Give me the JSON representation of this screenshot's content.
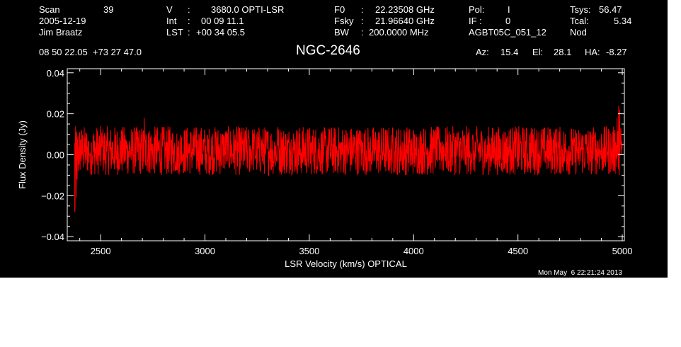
{
  "header": {
    "scan_label": "Scan",
    "scan_value": "39",
    "date": "2005-12-19",
    "observer": "Jim Braatz",
    "v_label": "V",
    "v_value": "3680.0 OPTI-LSR",
    "int_label": "Int",
    "int_value": "00 09 11.1",
    "lst_label": "LST",
    "lst_value": "+00 34 05.5",
    "f0_label": "F0",
    "f0_value": "22.23508 GHz",
    "fsky_label": "Fsky",
    "fsky_value": "21.96640 GHz",
    "bw_label": "BW",
    "bw_value": "200.0000 MHz",
    "pol_label": "Pol:",
    "pol_value": "I",
    "if_label": "IF :",
    "if_value": "0",
    "project": "AGBT05C_051_12",
    "tsys_label": "Tsys:",
    "tsys_value": "56.47",
    "tcal_label": "Tcal:",
    "tcal_value": "5.34",
    "mode": "Nod",
    "coords": "08 50 22.05  +73 27 47.0",
    "source": "NGC-2646",
    "az_label": "Az:",
    "az_value": "15.4",
    "el_label": "El:",
    "el_value": "28.1",
    "ha_label": "HA:",
    "ha_value": "-8.27"
  },
  "timestamp": "Mon May  6 22:21:24 2013",
  "chart_data": {
    "type": "line",
    "title": "NGC-2646",
    "xlabel": "LSR Velocity (km/s) OPTICAL",
    "ylabel": "Flux Density (Jy)",
    "xlim": [
      2340,
      5010
    ],
    "ylim": [
      -0.042,
      0.042
    ],
    "xticks": [
      2500,
      3000,
      3500,
      4000,
      4500,
      5000
    ],
    "xtick_labels": [
      "2500",
      "3000",
      "3500",
      "4000",
      "4500",
      "5000"
    ],
    "yticks": [
      -0.04,
      -0.02,
      0.0,
      0.02,
      0.04
    ],
    "ytick_labels": [
      "−0.04",
      "−0.02",
      "0.00",
      "0.02",
      "0.04"
    ],
    "grid": false,
    "background_color": "#000000",
    "series": [
      {
        "color": "#ff0000",
        "x": [
          2376,
          2380,
          2385,
          2390,
          2395,
          2400,
          2410,
          2420,
          2440,
          2460,
          2480,
          2500,
          2520,
          2540,
          2560,
          2580,
          2600,
          2620,
          2640,
          2660,
          2680,
          2700,
          2718,
          2740,
          2760,
          2780,
          2800,
          2820,
          2840,
          2860,
          2880,
          2900,
          2920,
          2940,
          2960,
          2980,
          3000,
          3020,
          3040,
          3060,
          3080,
          3100,
          3120,
          3140,
          3160,
          3180,
          3200,
          3220,
          3240,
          3260,
          3280,
          3300,
          3320,
          3340,
          3360,
          3380,
          3400,
          3420,
          3440,
          3460,
          3480,
          3500,
          3520,
          3540,
          3560,
          3580,
          3600,
          3620,
          3640,
          3660,
          3680,
          3700,
          3720,
          3740,
          3760,
          3780,
          3800,
          3820,
          3840,
          3860,
          3880,
          3900,
          3920,
          3940,
          3960,
          3980,
          4000,
          4020,
          4040,
          4060,
          4080,
          4100,
          4120,
          4140,
          4160,
          4180,
          4200,
          4220,
          4240,
          4260,
          4280,
          4300,
          4320,
          4340,
          4360,
          4380,
          4400,
          4420,
          4440,
          4460,
          4480,
          4500,
          4520,
          4540,
          4560,
          4580,
          4600,
          4620,
          4640,
          4660,
          4680,
          4700,
          4720,
          4740,
          4760,
          4780,
          4800,
          4820,
          4840,
          4860,
          4880,
          4900,
          4920,
          4940,
          4960,
          4970,
          4980,
          4985,
          4990,
          4995,
          5000
        ],
        "y": [
          -0.028,
          -0.024,
          -0.018,
          -0.006,
          -0.01,
          0.004,
          -0.003,
          0.008,
          -0.004,
          0.006,
          -0.009,
          0.003,
          0.01,
          -0.007,
          0.002,
          -0.011,
          0.007,
          -0.002,
          0.012,
          -0.008,
          0.001,
          0.009,
          0.027,
          -0.006,
          0.004,
          -0.012,
          0.008,
          0.0,
          -0.006,
          0.011,
          -0.003,
          0.006,
          -0.01,
          0.004,
          0.009,
          -0.007,
          0.002,
          -0.012,
          0.007,
          0.01,
          -0.004,
          0.003,
          -0.009,
          0.008,
          0.001,
          -0.011,
          0.005,
          0.012,
          -0.006,
          0.009,
          -0.003,
          0.006,
          -0.01,
          0.004,
          0.023,
          -0.008,
          0.002,
          0.01,
          -0.013,
          0.007,
          0.0,
          -0.005,
          0.011,
          -0.009,
          0.004,
          0.008,
          -0.012,
          0.006,
          0.002,
          -0.007,
          0.01,
          -0.004,
          0.003,
          0.012,
          -0.01,
          0.005,
          -0.002,
          0.009,
          -0.011,
          0.007,
          0.001,
          -0.006,
          0.01,
          -0.009,
          0.004,
          0.002,
          -0.012,
          0.008,
          0.006,
          -0.005,
          0.011,
          -0.008,
          0.003,
          0.009,
          -0.01,
          0.004,
          0.012,
          -0.007,
          0.001,
          0.008,
          -0.011,
          0.006,
          -0.003,
          0.01,
          -0.009,
          0.005,
          0.002,
          -0.012,
          0.007,
          0.011,
          -0.006,
          0.003,
          0.009,
          -0.01,
          0.004,
          0.021,
          -0.008,
          0.006,
          -0.011,
          0.01,
          0.002,
          -0.007,
          0.012,
          -0.009,
          0.005,
          0.008,
          -0.012,
          0.007,
          0.003,
          -0.01,
          0.009,
          -0.004,
          0.011,
          -0.008,
          0.01,
          0.014,
          0.022,
          0.026,
          0.018,
          0.008,
          0.005
        ]
      }
    ]
  }
}
